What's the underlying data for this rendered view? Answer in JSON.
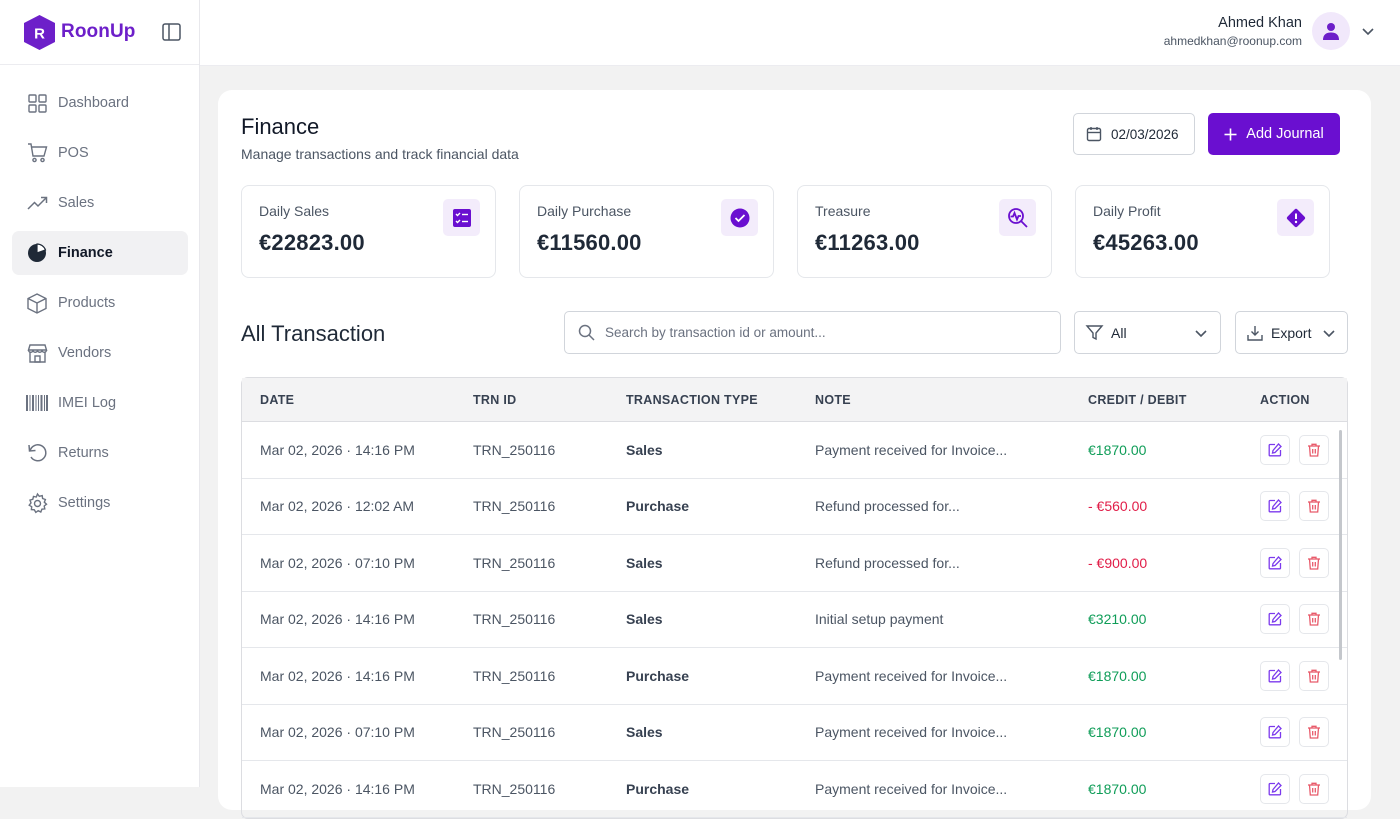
{
  "brand": {
    "name": "RoonUp",
    "logo_letter": "R",
    "color": "#6d1fc9"
  },
  "sidebar": {
    "items": [
      {
        "label": "Dashboard",
        "icon": "grid-icon"
      },
      {
        "label": "POS",
        "icon": "cart-icon"
      },
      {
        "label": "Sales",
        "icon": "trending-up-icon"
      },
      {
        "label": "Finance",
        "icon": "pie-chart-icon",
        "active": true
      },
      {
        "label": "Products",
        "icon": "box-icon"
      },
      {
        "label": "Vendors",
        "icon": "store-icon"
      },
      {
        "label": "IMEI Log",
        "icon": "barcode-icon"
      },
      {
        "label": "Returns",
        "icon": "undo-icon"
      },
      {
        "label": "Settings",
        "icon": "gear-icon"
      }
    ]
  },
  "user": {
    "name": "Ahmed Khan",
    "email": "ahmedkhan@roonup.com"
  },
  "page": {
    "title": "Finance",
    "subtitle": "Manage transactions and track financial data",
    "date": "02/03/2026",
    "add_label": "Add Journal"
  },
  "stats": [
    {
      "label": "Daily Sales",
      "value": "€22823.00",
      "icon": "checklist-icon"
    },
    {
      "label": "Daily Purchase",
      "value": "€11560.00",
      "icon": "check-circle-icon"
    },
    {
      "label": "Treasure",
      "value": "€11263.00",
      "icon": "search-analytics-icon"
    },
    {
      "label": "Daily Profit",
      "value": "€45263.00",
      "icon": "alert-diamond-icon"
    }
  ],
  "transactions": {
    "title": "All Transaction",
    "search_placeholder": "Search by transaction id or amount...",
    "filter_label": "All",
    "export_label": "Export",
    "columns": [
      "DATE",
      "TRN ID",
      "TRANSACTION TYPE",
      "NOTE",
      "CREDIT / DEBIT",
      "ACTION"
    ],
    "rows": [
      {
        "date": "Mar 02, 2026 · 14:16 PM",
        "trn": "TRN_250116",
        "type": "Sales",
        "note": "Payment received for Invoice...",
        "amount": "€1870.00",
        "kind": "credit"
      },
      {
        "date": "Mar 02, 2026 · 12:02 AM",
        "trn": "TRN_250116",
        "type": "Purchase",
        "note": "Refund processed for...",
        "amount": "- €560.00",
        "kind": "debit"
      },
      {
        "date": "Mar 02, 2026 · 07:10 PM",
        "trn": "TRN_250116",
        "type": "Sales",
        "note": "Refund processed for...",
        "amount": "- €900.00",
        "kind": "debit"
      },
      {
        "date": "Mar 02, 2026 · 14:16 PM",
        "trn": "TRN_250116",
        "type": "Sales",
        "note": "Initial setup payment",
        "amount": "€3210.00",
        "kind": "credit"
      },
      {
        "date": "Mar 02, 2026 · 14:16 PM",
        "trn": "TRN_250116",
        "type": "Purchase",
        "note": "Payment received for Invoice...",
        "amount": "€1870.00",
        "kind": "credit"
      },
      {
        "date": "Mar 02, 2026 · 07:10 PM",
        "trn": "TRN_250116",
        "type": "Sales",
        "note": "Payment received for Invoice...",
        "amount": "€1870.00",
        "kind": "credit"
      },
      {
        "date": "Mar 02, 2026 · 14:16 PM",
        "trn": "TRN_250116",
        "type": "Purchase",
        "note": "Payment received for Invoice...",
        "amount": "€1870.00",
        "kind": "credit"
      }
    ]
  },
  "colors": {
    "accent": "#6a0fd0",
    "credit": "#0f9d58",
    "debit": "#e11d48",
    "edit": "#7c3aed",
    "delete": "#e85a6a"
  }
}
